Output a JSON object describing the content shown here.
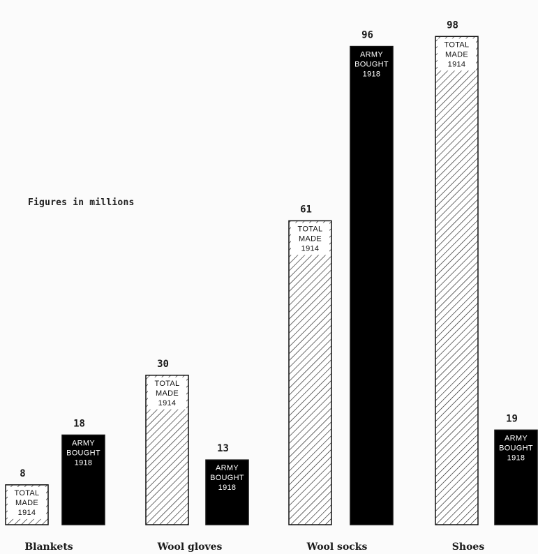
{
  "note": "Figures in millions",
  "chart_data": {
    "type": "bar",
    "categories": [
      "Blankets",
      "Wool gloves",
      "Wool socks",
      "Shoes"
    ],
    "series": [
      {
        "name": "TOTAL MADE 1914",
        "values": [
          8,
          30,
          61,
          98
        ],
        "style": "hatched",
        "color": "#ffffff"
      },
      {
        "name": "ARMY BOUGHT 1918",
        "values": [
          18,
          13,
          96,
          19
        ],
        "style": "solid",
        "color": "#000000"
      }
    ],
    "bar_label_lines": {
      "TOTAL MADE 1914": [
        "TOTAL",
        "MADE",
        "1914"
      ],
      "ARMY BOUGHT 1918": [
        "ARMY",
        "BOUGHT",
        "1918"
      ]
    },
    "ylim": [
      0,
      100
    ],
    "grid": false,
    "legend": "none"
  }
}
